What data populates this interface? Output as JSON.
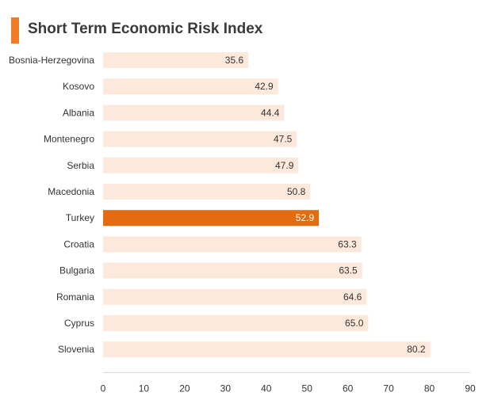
{
  "title": "Short Term Economic Risk Index",
  "colors": {
    "bar": "#fde9dc",
    "highlight": "#e36c12",
    "accent": "#f07c2a"
  },
  "chart_data": {
    "type": "bar",
    "orientation": "horizontal",
    "title": "Short Term Economic Risk Index",
    "categories": [
      "Bosnia-Herzegovina",
      "Kosovo",
      "Albania",
      "Montenegro",
      "Serbia",
      "Macedonia",
      "Turkey",
      "Croatia",
      "Bulgaria",
      "Romania",
      "Cyprus",
      "Slovenia"
    ],
    "values": [
      35.6,
      42.9,
      44.4,
      47.5,
      47.9,
      50.8,
      52.9,
      63.3,
      63.5,
      64.6,
      65.0,
      80.2
    ],
    "value_labels": [
      "35.6",
      "42.9",
      "44.4",
      "47.5",
      "47.9",
      "50.8",
      "52.9",
      "63.3",
      "63.5",
      "64.6",
      "65.0",
      "80.2"
    ],
    "highlight": "Turkey",
    "xlim": [
      0,
      90
    ],
    "xticks": [
      "0",
      "10",
      "20",
      "30",
      "40",
      "50",
      "60",
      "70",
      "80",
      "90"
    ],
    "xlabel": "",
    "ylabel": "",
    "grid": false,
    "legend": "none"
  }
}
